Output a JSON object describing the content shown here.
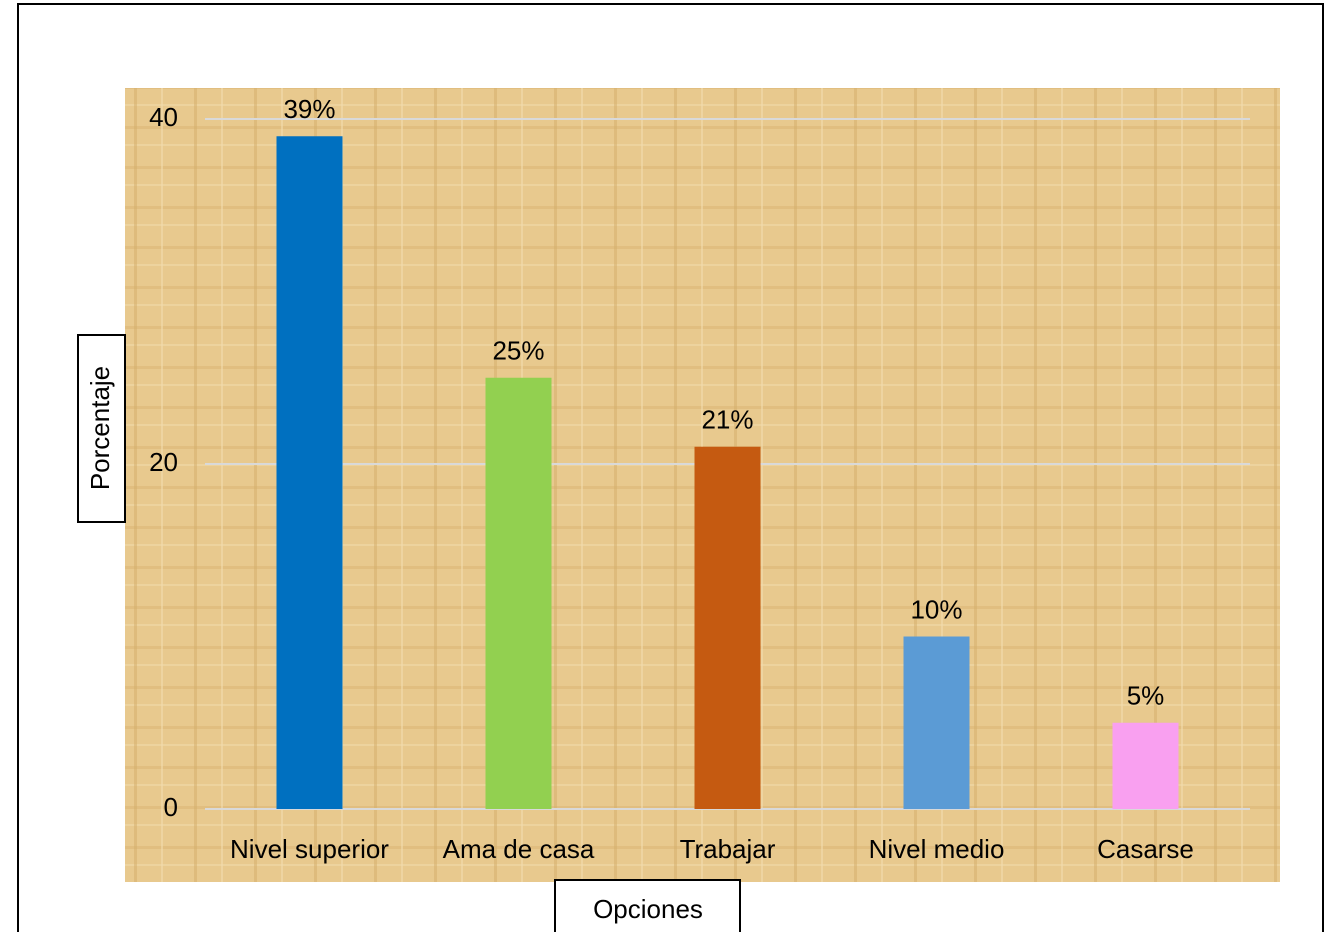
{
  "chart_data": {
    "type": "bar",
    "categories": [
      "Nivel superior",
      "Ama de casa",
      "Trabajar",
      "Nivel medio",
      "Casarse"
    ],
    "values": [
      39,
      25,
      21,
      10,
      5
    ],
    "value_labels": [
      "39%",
      "25%",
      "21%",
      "10%",
      "5%"
    ],
    "colors": [
      "#0070c0",
      "#92d050",
      "#c55a11",
      "#5b9bd5",
      "#f9a0f0"
    ],
    "ylim": [
      0,
      40
    ],
    "yticks": [
      0,
      20,
      40
    ],
    "grid": true,
    "y_label": "Porcentaje",
    "x_label": "Opciones"
  }
}
